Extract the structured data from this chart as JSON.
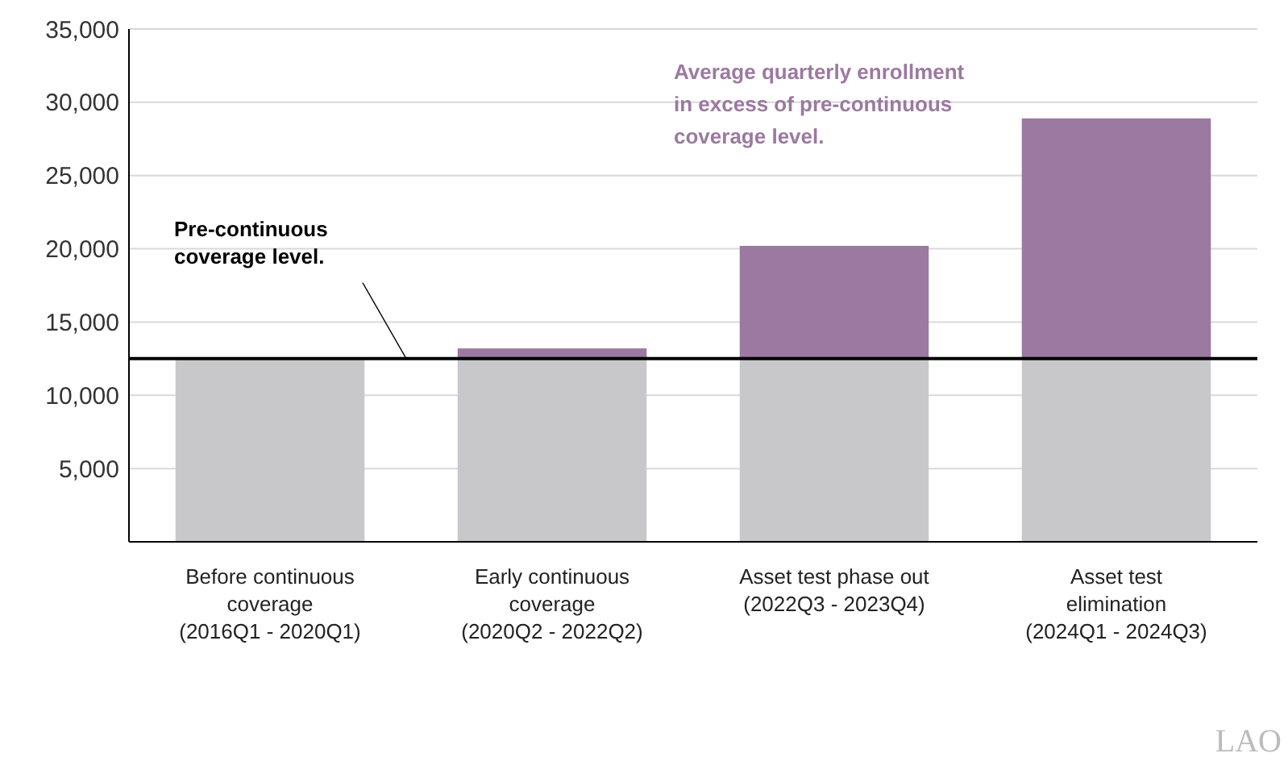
{
  "chart_data": {
    "type": "bar",
    "stacked": true,
    "categories": [
      "Before continuous\ncoverage\n(2016Q1 - 2020Q1)",
      "Early continuous\ncoverage\n(2020Q2 - 2022Q2)",
      "Asset test phase out\n(2022Q3 - 2023Q4)",
      "Asset test\nelimination\n(2024Q1 - 2024Q3)"
    ],
    "series": [
      {
        "color": "#c8c8ca",
        "values": [
          12500,
          12500,
          12500,
          12500
        ]
      },
      {
        "name": "Average quarterly enrollment\nin excess of pre-continuous\ncoverage level.",
        "color": "#9b79a0",
        "values": [
          0,
          700,
          7700,
          16400
        ]
      }
    ],
    "ylim": [
      0,
      35000
    ],
    "yticks": [
      {
        "value": 0,
        "label": null
      },
      {
        "value": 5000,
        "label": "5,000"
      },
      {
        "value": 10000,
        "label": "10,000"
      },
      {
        "value": 15000,
        "label": "15,000"
      },
      {
        "value": 20000,
        "label": "20,000"
      },
      {
        "value": 25000,
        "label": "25,000"
      },
      {
        "value": 30000,
        "label": "30,000"
      },
      {
        "value": 35000,
        "label": "35,000"
      }
    ],
    "grid": "y",
    "ref_lines": [
      {
        "axis": "y",
        "value": 12500,
        "label": "Pre-continuous\ncoverage level.",
        "color": "#000000"
      }
    ],
    "annotations": [
      "LAO"
    ]
  }
}
